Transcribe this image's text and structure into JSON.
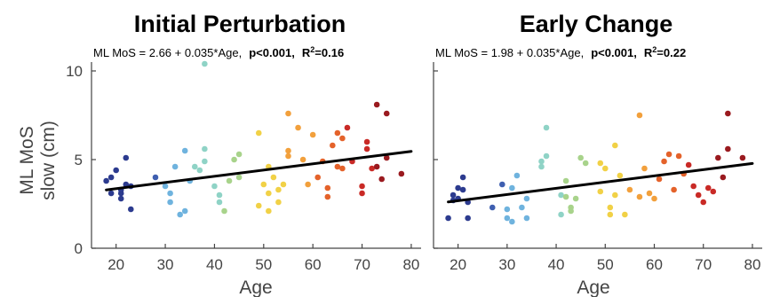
{
  "chart_data": [
    {
      "type": "scatter",
      "title": "Initial Perturbation",
      "equation": {
        "text": "ML MoS = 2.66 + 0.035*Age,",
        "p": "p<0.001,",
        "r2_prefix": "R",
        "r2_sup": "2",
        "r2_value": "=0.16"
      },
      "xlabel": "Age",
      "ylabel_lines": [
        "ML MoS",
        "slow (cm)"
      ],
      "xlim": [
        15,
        82
      ],
      "ylim": [
        0,
        10.5
      ],
      "xticks": [
        "20",
        "30",
        "40",
        "50",
        "60",
        "70",
        "80"
      ],
      "yticks": [
        "0",
        "5",
        "10"
      ],
      "fit": {
        "intercept": 2.66,
        "slope": 0.035,
        "x_range": [
          18,
          80
        ]
      },
      "points": [
        [
          18,
          3.8
        ],
        [
          19,
          3.1
        ],
        [
          19,
          4.0
        ],
        [
          20,
          4.4
        ],
        [
          21,
          3.1
        ],
        [
          21,
          2.8
        ],
        [
          21,
          3.3
        ],
        [
          22,
          5.1
        ],
        [
          22,
          3.6
        ],
        [
          23,
          2.2
        ],
        [
          23,
          3.5
        ],
        [
          28,
          4.0
        ],
        [
          30,
          3.5
        ],
        [
          31,
          3.1
        ],
        [
          31,
          2.6
        ],
        [
          32,
          4.6
        ],
        [
          33,
          1.9
        ],
        [
          34,
          2.1
        ],
        [
          34,
          5.5
        ],
        [
          35,
          3.8
        ],
        [
          36,
          4.6
        ],
        [
          37,
          4.4
        ],
        [
          38,
          10.4
        ],
        [
          38,
          5.6
        ],
        [
          38,
          4.9
        ],
        [
          40,
          3.5
        ],
        [
          41,
          3.0
        ],
        [
          41,
          2.6
        ],
        [
          42,
          2.1
        ],
        [
          43,
          3.8
        ],
        [
          44,
          5.0
        ],
        [
          45,
          5.3
        ],
        [
          45,
          4.0
        ],
        [
          49,
          6.5
        ],
        [
          49,
          2.4
        ],
        [
          50,
          3.6
        ],
        [
          51,
          2.1
        ],
        [
          51,
          4.6
        ],
        [
          51,
          3.1
        ],
        [
          52,
          4.0
        ],
        [
          53,
          3.3
        ],
        [
          53,
          2.6
        ],
        [
          54,
          3.6
        ],
        [
          55,
          7.6
        ],
        [
          55,
          5.5
        ],
        [
          55,
          5.2
        ],
        [
          57,
          6.8
        ],
        [
          58,
          5.0
        ],
        [
          59,
          3.6
        ],
        [
          60,
          6.4
        ],
        [
          61,
          4.0
        ],
        [
          62,
          4.9
        ],
        [
          63,
          3.4
        ],
        [
          63,
          2.9
        ],
        [
          64,
          5.8
        ],
        [
          65,
          6.5
        ],
        [
          65,
          4.6
        ],
        [
          66,
          4.5
        ],
        [
          66,
          6.2
        ],
        [
          67,
          6.8
        ],
        [
          68,
          4.9
        ],
        [
          70,
          3.5
        ],
        [
          70,
          3.1
        ],
        [
          71,
          6.0
        ],
        [
          71,
          5.6
        ],
        [
          72,
          4.5
        ],
        [
          73,
          4.6
        ],
        [
          73,
          8.1
        ],
        [
          74,
          3.9
        ],
        [
          75,
          7.6
        ],
        [
          75,
          5.1
        ],
        [
          78,
          4.2
        ]
      ]
    },
    {
      "type": "scatter",
      "title": "Early Change",
      "equation": {
        "text": "ML MoS = 1.98 + 0.035*Age,",
        "p": "p<0.001,",
        "r2_prefix": "R",
        "r2_sup": "2",
        "r2_value": "=0.22"
      },
      "xlabel": "Age",
      "xlim": [
        15,
        82
      ],
      "ylim": [
        0,
        10.5
      ],
      "xticks": [
        "20",
        "30",
        "40",
        "50",
        "60",
        "70",
        "80"
      ],
      "fit": {
        "intercept": 1.98,
        "slope": 0.035,
        "x_range": [
          18,
          80
        ]
      },
      "points": [
        [
          18,
          1.7
        ],
        [
          19,
          2.7
        ],
        [
          19,
          3.0
        ],
        [
          20,
          3.4
        ],
        [
          20,
          2.8
        ],
        [
          21,
          4.0
        ],
        [
          21,
          3.3
        ],
        [
          22,
          2.6
        ],
        [
          22,
          1.7
        ],
        [
          27,
          2.3
        ],
        [
          29,
          3.6
        ],
        [
          30,
          1.7
        ],
        [
          30,
          2.2
        ],
        [
          31,
          1.5
        ],
        [
          31,
          3.4
        ],
        [
          32,
          4.1
        ],
        [
          33,
          2.3
        ],
        [
          34,
          2.8
        ],
        [
          34,
          1.7
        ],
        [
          37,
          4.6
        ],
        [
          37,
          4.9
        ],
        [
          38,
          5.2
        ],
        [
          38,
          6.8
        ],
        [
          41,
          3.0
        ],
        [
          41,
          1.9
        ],
        [
          42,
          2.9
        ],
        [
          42,
          3.8
        ],
        [
          43,
          2.3
        ],
        [
          43,
          2.1
        ],
        [
          44,
          2.8
        ],
        [
          45,
          5.1
        ],
        [
          46,
          4.8
        ],
        [
          49,
          3.2
        ],
        [
          49,
          4.8
        ],
        [
          50,
          4.5
        ],
        [
          51,
          2.3
        ],
        [
          51,
          1.9
        ],
        [
          52,
          3.0
        ],
        [
          52,
          5.8
        ],
        [
          53,
          4.1
        ],
        [
          54,
          1.9
        ],
        [
          55,
          3.3
        ],
        [
          57,
          7.5
        ],
        [
          57,
          2.9
        ],
        [
          58,
          4.5
        ],
        [
          59,
          3.1
        ],
        [
          60,
          2.8
        ],
        [
          61,
          3.9
        ],
        [
          62,
          4.9
        ],
        [
          63,
          5.3
        ],
        [
          64,
          3.3
        ],
        [
          65,
          5.2
        ],
        [
          66,
          4.2
        ],
        [
          67,
          4.7
        ],
        [
          68,
          3.5
        ],
        [
          69,
          3.0
        ],
        [
          70,
          2.6
        ],
        [
          71,
          3.4
        ],
        [
          72,
          3.2
        ],
        [
          73,
          5.1
        ],
        [
          74,
          4.0
        ],
        [
          75,
          5.6
        ],
        [
          75,
          7.6
        ],
        [
          78,
          5.1
        ]
      ]
    }
  ],
  "colors": {
    "fit_line": "#000000",
    "axis": "#444444",
    "age_colormap": [
      "#2c3b8f",
      "#3f5fb0",
      "#6fb3de",
      "#8fd3c6",
      "#a8d38b",
      "#f1d146",
      "#f2a03c",
      "#e4622a",
      "#c92a26",
      "#9a1a1f"
    ]
  }
}
